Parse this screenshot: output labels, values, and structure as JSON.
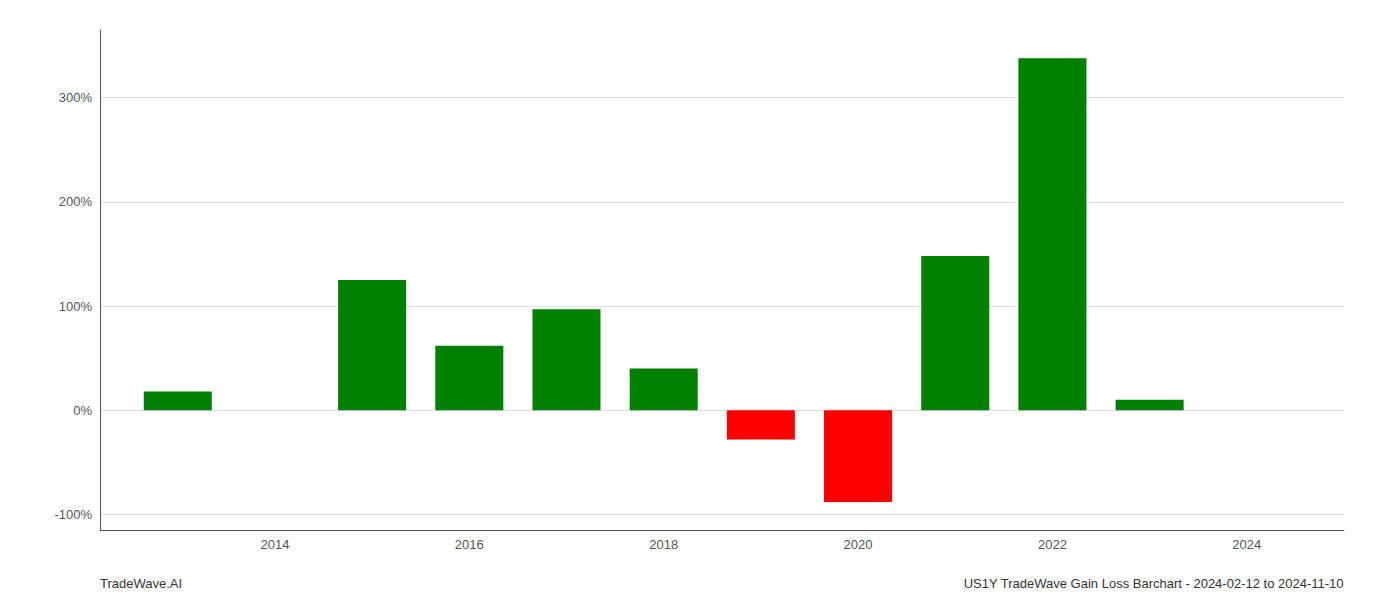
{
  "chart_data": {
    "type": "bar",
    "x": [
      2013,
      2015,
      2016,
      2017,
      2018,
      2019,
      2020,
      2021,
      2022,
      2023
    ],
    "values": [
      0.18,
      1.25,
      0.62,
      0.97,
      0.4,
      -0.28,
      -0.88,
      1.48,
      3.38,
      0.1
    ],
    "colors": [
      "#008000",
      "#008000",
      "#008000",
      "#008000",
      "#008000",
      "#ff0000",
      "#ff0000",
      "#008000",
      "#008000",
      "#008000"
    ],
    "xlim": [
      2012.2,
      2025.0
    ],
    "xticks": [
      2014,
      2016,
      2018,
      2020,
      2022,
      2024
    ],
    "ylim": [
      -1.15,
      3.65
    ],
    "yticks": [
      {
        "value": -1.0,
        "label": "-100%"
      },
      {
        "value": 0.0,
        "label": "0%"
      },
      {
        "value": 1.0,
        "label": "100%"
      },
      {
        "value": 2.0,
        "label": "200%"
      },
      {
        "value": 3.0,
        "label": "300%"
      }
    ],
    "grid": true,
    "annotations": [
      "TradeWave.AI",
      "US1Y TradeWave Gain Loss Barchart - 2024-02-12 to 2024-11-10"
    ]
  }
}
